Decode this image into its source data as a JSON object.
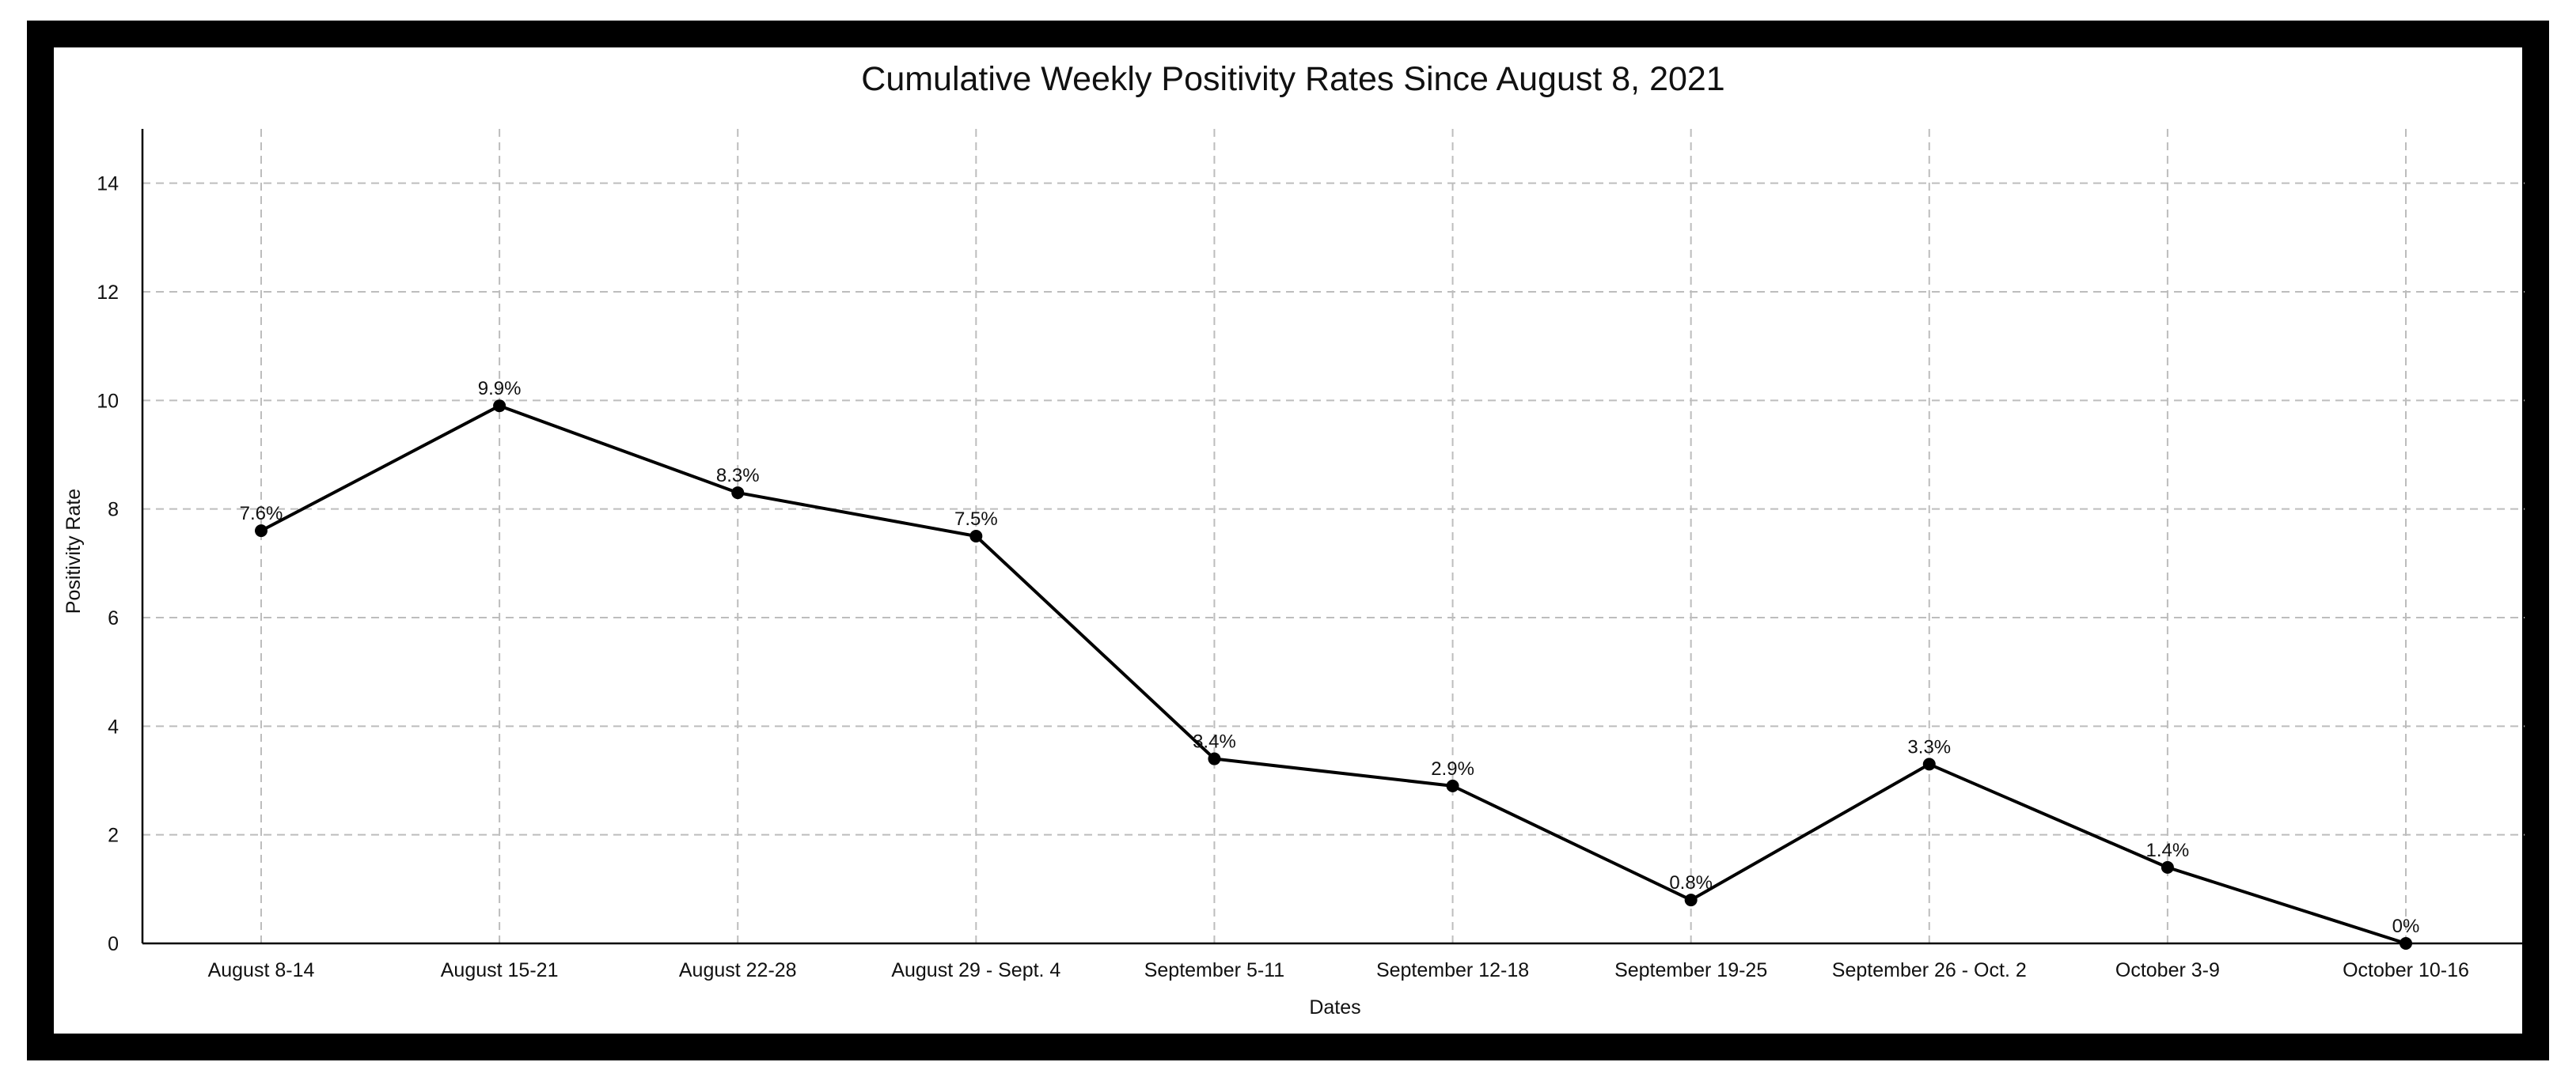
{
  "chart_data": {
    "type": "line",
    "title": "Cumulative Weekly Positivity Rates Since August 8, 2021",
    "xlabel": "Dates",
    "ylabel": "Positivity Rate",
    "categories": [
      "August 8-14",
      "August 15-21",
      "August 22-28",
      "August 29 - Sept. 4",
      "September 5-11",
      "September 12-18",
      "September 19-25",
      "September 26 - Oct. 2",
      "October 3-9",
      "October 10-16"
    ],
    "series": [
      {
        "values": [
          7.6,
          9.9,
          8.3,
          7.5,
          3.4,
          2.9,
          0.8,
          3.3,
          1.4,
          0
        ],
        "data_labels": [
          "7.6%",
          "9.9%",
          "8.3%",
          "7.5%",
          "3.4%",
          "2.9%",
          "0.8%",
          "3.3%",
          "1.4%",
          "0%"
        ]
      }
    ],
    "ylim": [
      0,
      15
    ],
    "yticks": [
      0,
      2,
      4,
      6,
      8,
      10,
      12,
      14
    ],
    "grid": true,
    "legend": "none",
    "colors": {
      "line": "#000000",
      "grid": "#bdbdbd",
      "frame": "#000000"
    }
  }
}
